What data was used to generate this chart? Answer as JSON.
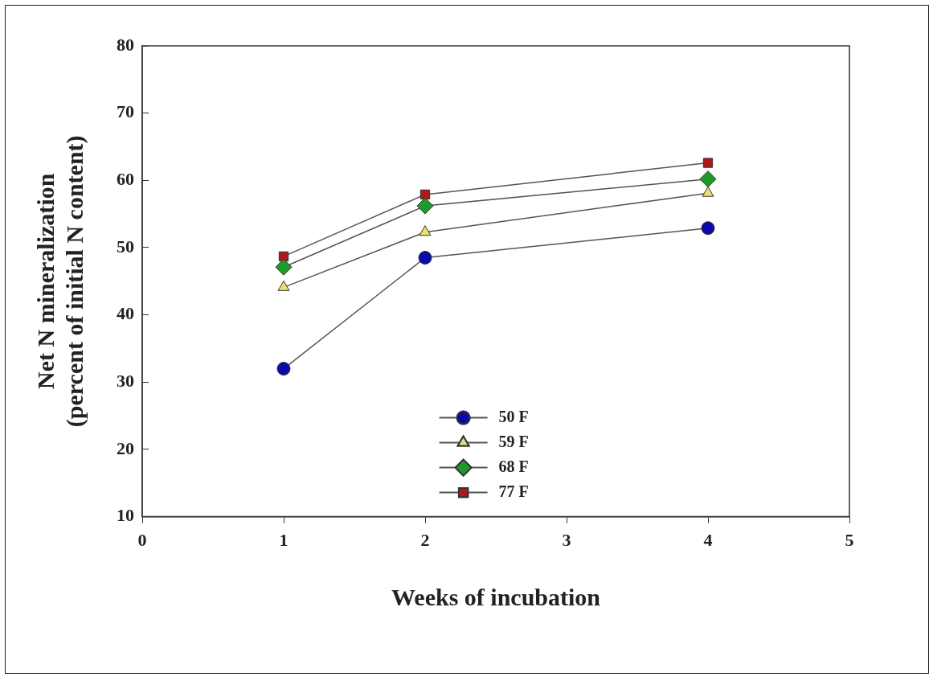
{
  "chart_data": {
    "type": "line",
    "xlabel": "Weeks of incubation",
    "ylabel": "Net N mineralization\n(percent of initial N content)",
    "x": [
      1,
      2,
      4
    ],
    "series": [
      {
        "name": "50 F",
        "color": "#0a0aa8",
        "marker": "circle",
        "values": [
          32.0,
          48.5,
          52.9
        ]
      },
      {
        "name": "59 F",
        "color": "#e8e070",
        "marker": "triangle",
        "values": [
          44.1,
          52.3,
          58.1
        ]
      },
      {
        "name": "68 F",
        "color": "#1e9a2a",
        "marker": "diamond",
        "values": [
          47.1,
          56.2,
          60.2
        ]
      },
      {
        "name": "77 F",
        "color": "#b01818",
        "marker": "square",
        "values": [
          48.7,
          57.9,
          62.6
        ]
      }
    ],
    "xlim": [
      0,
      5
    ],
    "xticks": [
      0,
      1,
      2,
      3,
      4,
      5
    ],
    "ylim": [
      10,
      80
    ],
    "yticks": [
      10,
      20,
      30,
      40,
      50,
      60,
      70,
      80
    ],
    "grid": false,
    "legend": "bottom",
    "line_style": "solid"
  }
}
